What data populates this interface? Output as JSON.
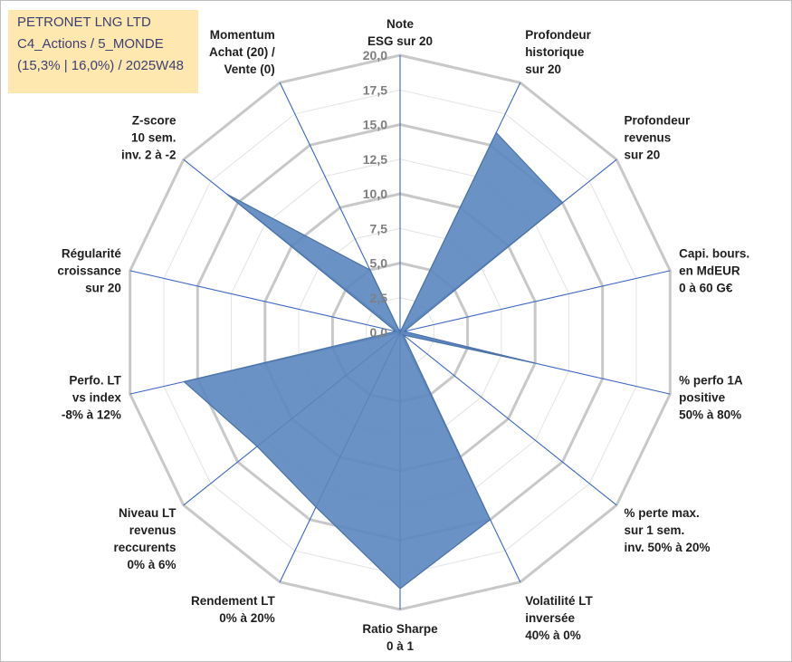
{
  "title_box": {
    "line1": "PETRONET LNG LTD",
    "line2": "C4_Actions / 5_MONDE",
    "line3": "(15,3% | 16,0%) / 2025W48"
  },
  "chart_data": {
    "type": "radar",
    "title": "PETRONET LNG LTD",
    "range": [
      0,
      20
    ],
    "ticks": [
      "0,0",
      "2,5",
      "5,0",
      "7,5",
      "10,0",
      "12,5",
      "15,0",
      "17,5",
      "20,0"
    ],
    "tick_values": [
      0,
      2.5,
      5,
      7.5,
      10,
      12.5,
      15,
      17.5,
      20
    ],
    "grid_major_every": 5,
    "axes": [
      {
        "label": [
          "Note",
          "ESG sur 20"
        ],
        "value": 0
      },
      {
        "label": [
          "Profondeur",
          "historique",
          "sur 20"
        ],
        "value": 16
      },
      {
        "label": [
          "Profondeur",
          "revenus",
          "sur 20"
        ],
        "value": 15
      },
      {
        "label": [
          "Capi. bours.",
          "en MdEUR",
          "0 à 60 G€"
        ],
        "value": 0.3
      },
      {
        "label": [
          "% perfo 1A",
          "positive",
          "50% à 80%"
        ],
        "value": 10
      },
      {
        "label": [
          "% perte max.",
          "sur 1 sem.",
          "inv. 50% à 20%"
        ],
        "value": 0.3
      },
      {
        "label": [
          "Volatilité LT",
          "inversée",
          "40% à 0%"
        ],
        "value": 15
      },
      {
        "label": [
          "Ratio Sharpe",
          "0 à 1"
        ],
        "value": 18.5
      },
      {
        "label": [
          "Rendement LT",
          "0% à 20%"
        ],
        "value": 14
      },
      {
        "label": [
          "Niveau LT",
          "revenus",
          "reccurents",
          "0% à 6%"
        ],
        "value": 13.2
      },
      {
        "label": [
          "Perfo. LT",
          "vs index",
          "-8% à 12%"
        ],
        "value": 16
      },
      {
        "label": [
          "Régularité",
          "croissance",
          "sur 20"
        ],
        "value": 0.3
      },
      {
        "label": [
          "Z-score",
          "10 sem.",
          "inv. 2 à -2"
        ],
        "value": 16
      },
      {
        "label": [
          "Momentum",
          "Achat (20) /",
          "Vente (0)"
        ],
        "value": 5
      }
    ],
    "series_color": "#5a86be"
  }
}
